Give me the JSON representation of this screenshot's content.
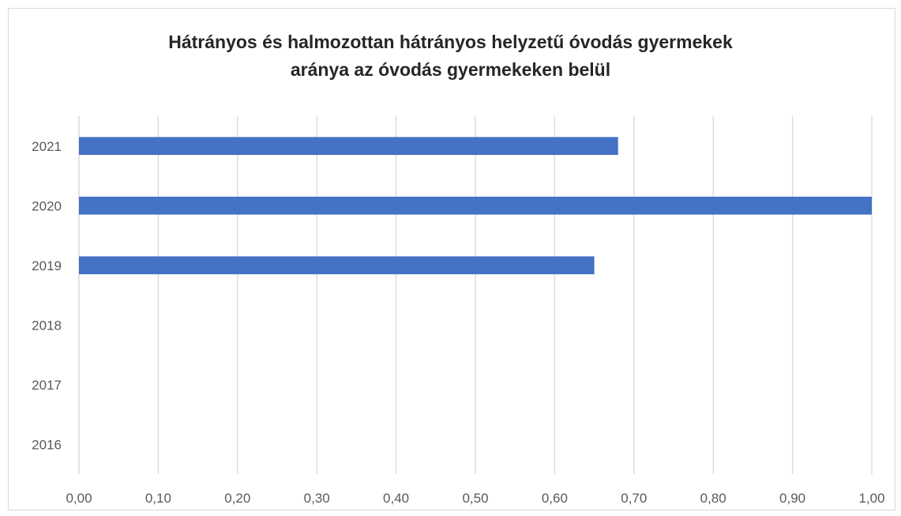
{
  "chart_data": {
    "type": "bar",
    "orientation": "horizontal",
    "title_lines": [
      "Hátrányos és halmozottan hátrányos helyzetű óvodás gyermekek",
      "aránya az óvodás gyermekeken belül"
    ],
    "categories": [
      "2016",
      "2017",
      "2018",
      "2019",
      "2020",
      "2021"
    ],
    "values": [
      null,
      null,
      null,
      0.65,
      1.0,
      0.68
    ],
    "xlim": [
      0,
      1
    ],
    "x_ticks": [
      "0,00",
      "0,10",
      "0,20",
      "0,30",
      "0,40",
      "0,50",
      "0,60",
      "0,70",
      "0,80",
      "0,90",
      "1,00"
    ],
    "grid": "vertical",
    "legend": "none",
    "colors": {
      "bar": "#4472c4",
      "grid": "#d9d9d9",
      "text": "#595959",
      "title": "#262626"
    }
  }
}
